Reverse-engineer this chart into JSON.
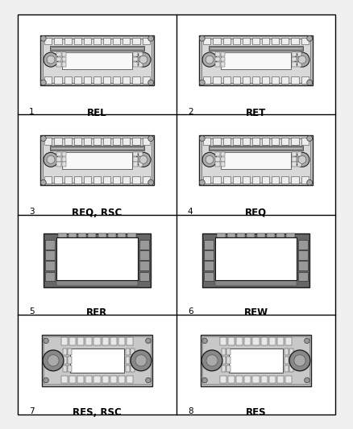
{
  "bg_color": "#f0f0f0",
  "grid_color": "#000000",
  "cells": [
    {
      "num": "1",
      "label": "REL",
      "row": 0,
      "col": 0,
      "type": "standard"
    },
    {
      "num": "2",
      "label": "RET",
      "row": 0,
      "col": 1,
      "type": "standard"
    },
    {
      "num": "3",
      "label": "REQ, RSC",
      "row": 1,
      "col": 0,
      "type": "standard"
    },
    {
      "num": "4",
      "label": "REQ",
      "row": 1,
      "col": 1,
      "type": "standard"
    },
    {
      "num": "5",
      "label": "RER",
      "row": 2,
      "col": 0,
      "type": "nav"
    },
    {
      "num": "6",
      "label": "REW",
      "row": 2,
      "col": 1,
      "type": "nav"
    },
    {
      "num": "7",
      "label": "RES, RSC",
      "row": 3,
      "col": 0,
      "type": "res"
    },
    {
      "num": "8",
      "label": "RES",
      "row": 3,
      "col": 1,
      "type": "res"
    }
  ]
}
